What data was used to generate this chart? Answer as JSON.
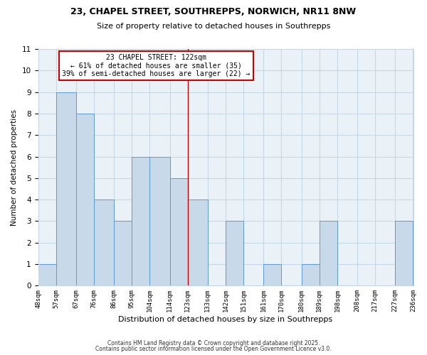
{
  "title": "23, CHAPEL STREET, SOUTHREPPS, NORWICH, NR11 8NW",
  "subtitle": "Size of property relative to detached houses in Southrepps",
  "xlabel": "Distribution of detached houses by size in Southrepps",
  "ylabel": "Number of detached properties",
  "footer1": "Contains HM Land Registry data © Crown copyright and database right 2025.",
  "footer2": "Contains public sector information licensed under the Open Government Licence v3.0.",
  "bin_edges": [
    48,
    57,
    67,
    76,
    86,
    95,
    104,
    114,
    123,
    133,
    142,
    151,
    161,
    170,
    180,
    189,
    198,
    208,
    217,
    227,
    236
  ],
  "bin_labels": [
    "48sqm",
    "57sqm",
    "67sqm",
    "76sqm",
    "86sqm",
    "95sqm",
    "104sqm",
    "114sqm",
    "123sqm",
    "133sqm",
    "142sqm",
    "151sqm",
    "161sqm",
    "170sqm",
    "180sqm",
    "189sqm",
    "198sqm",
    "208sqm",
    "217sqm",
    "227sqm",
    "236sqm"
  ],
  "counts": [
    1,
    9,
    8,
    4,
    3,
    6,
    6,
    5,
    4,
    0,
    3,
    0,
    1,
    0,
    1,
    3,
    0,
    0,
    0,
    3
  ],
  "bar_color": "#c8daea",
  "bar_edge_color": "#5b9bd5",
  "vline_x": 123,
  "vline_color": "#cc0000",
  "annotation_line1": "23 CHAPEL STREET: 122sqm",
  "annotation_line2": "← 61% of detached houses are smaller (35)",
  "annotation_line3": "39% of semi-detached houses are larger (22) →",
  "annotation_box_color": "#cc0000",
  "ylim": [
    0,
    11
  ],
  "yticks": [
    0,
    1,
    2,
    3,
    4,
    5,
    6,
    7,
    8,
    9,
    10,
    11
  ],
  "grid_color": "#c5d8e8",
  "bg_color": "#ffffff",
  "plot_bg_color": "#eaf2f8"
}
